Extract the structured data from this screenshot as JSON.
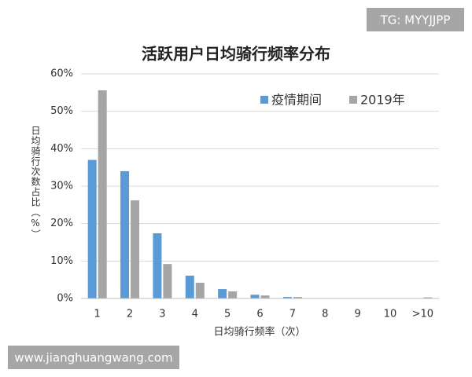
{
  "watermark_top": "TG: MYYJJPP",
  "watermark_bottom": "www.jianghuangwang.com",
  "chart_data": {
    "type": "bar",
    "title": "活跃用户日均骑行频率分布",
    "x_label": "日均骑行频率（次）",
    "y_label": "日均骑行次数占比（%）",
    "categories": [
      "1",
      "2",
      "3",
      "4",
      "5",
      "6",
      "7",
      "8",
      "9",
      "10",
      ">10"
    ],
    "series": [
      {
        "name": "疫情期间",
        "color": "#5b9bd5",
        "values": [
          37,
          34,
          17.4,
          6.1,
          2.5,
          1.0,
          0.4,
          0.1,
          0,
          0,
          0
        ]
      },
      {
        "name": "2019年",
        "color": "#a5a5a5",
        "values": [
          55.6,
          26.2,
          9.2,
          4.2,
          1.9,
          0.8,
          0.4,
          0.1,
          0,
          0,
          0.3
        ]
      }
    ],
    "ylim": [
      0,
      60
    ],
    "yticks": [
      {
        "value": 0,
        "label": "0%"
      },
      {
        "value": 10,
        "label": "10%"
      },
      {
        "value": 20,
        "label": "20%"
      },
      {
        "value": 30,
        "label": "30%"
      },
      {
        "value": 40,
        "label": "40%"
      },
      {
        "value": 50,
        "label": "50%"
      },
      {
        "value": 60,
        "label": "60%"
      }
    ],
    "grid": true,
    "legend": "top-right"
  }
}
